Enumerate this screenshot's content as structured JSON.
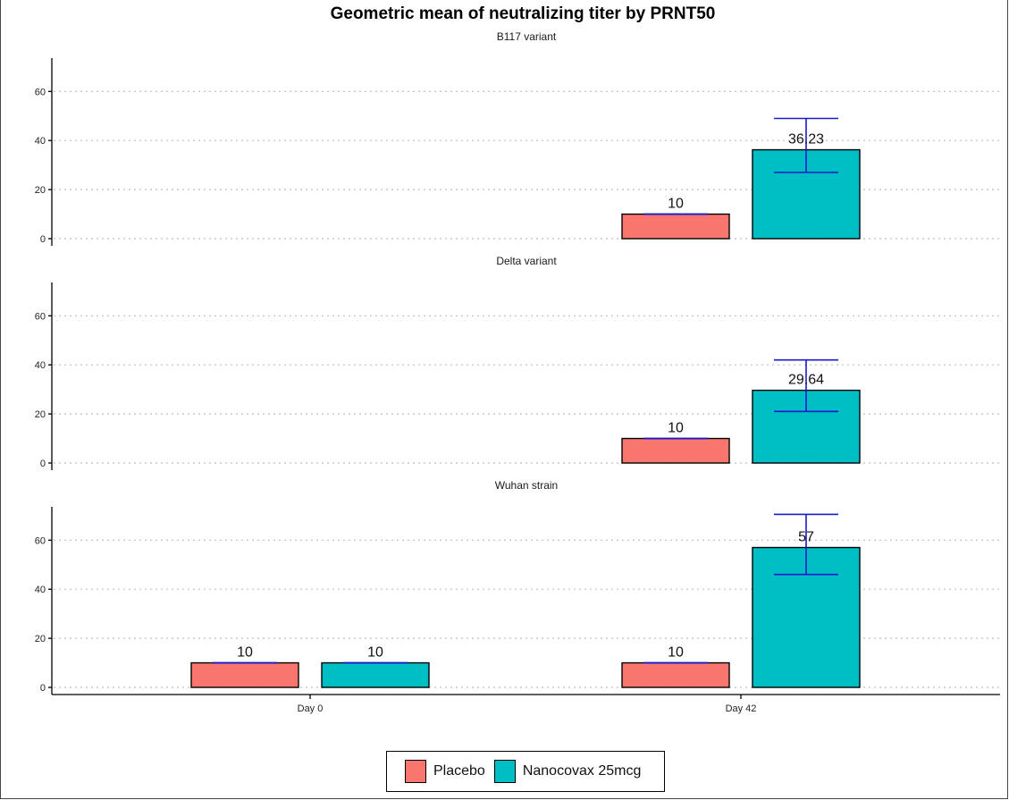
{
  "chart_data": {
    "type": "bar",
    "title": "Geometric mean of neutralizing titer by PRNT50",
    "categories": [
      "Day 0",
      "Day 42"
    ],
    "ylim": [
      0,
      72
    ],
    "yticks": [
      0,
      20,
      40,
      60
    ],
    "grid": true,
    "legend_position": "bottom",
    "series_colors": {
      "Placebo": "#F8766D",
      "Nanocovax 25mcg": "#00BFC4"
    },
    "error_bar_color": "#1a1acc",
    "panels": [
      {
        "label": "B117 variant",
        "series": [
          {
            "name": "Placebo",
            "values": [
              null,
              10
            ],
            "labels": [
              "",
              "10"
            ],
            "err_low": [
              null,
              10
            ],
            "err_high": [
              null,
              10
            ]
          },
          {
            "name": "Nanocovax 25mcg",
            "values": [
              null,
              36.23
            ],
            "labels": [
              "",
              "36.23"
            ],
            "err_low": [
              null,
              27
            ],
            "err_high": [
              null,
              49
            ]
          }
        ]
      },
      {
        "label": "Delta variant",
        "series": [
          {
            "name": "Placebo",
            "values": [
              null,
              10
            ],
            "labels": [
              "",
              "10"
            ],
            "err_low": [
              null,
              10
            ],
            "err_high": [
              null,
              10
            ]
          },
          {
            "name": "Nanocovax 25mcg",
            "values": [
              null,
              29.64
            ],
            "labels": [
              "",
              "29.64"
            ],
            "err_low": [
              null,
              21
            ],
            "err_high": [
              null,
              42
            ]
          }
        ]
      },
      {
        "label": "Wuhan strain",
        "series": [
          {
            "name": "Placebo",
            "values": [
              10,
              10
            ],
            "labels": [
              "10",
              "10"
            ],
            "err_low": [
              10,
              10
            ],
            "err_high": [
              10,
              10
            ]
          },
          {
            "name": "Nanocovax 25mcg",
            "values": [
              10,
              57
            ],
            "labels": [
              "10",
              "57"
            ],
            "err_low": [
              10,
              46
            ],
            "err_high": [
              10,
              70.5
            ]
          }
        ]
      }
    ]
  }
}
